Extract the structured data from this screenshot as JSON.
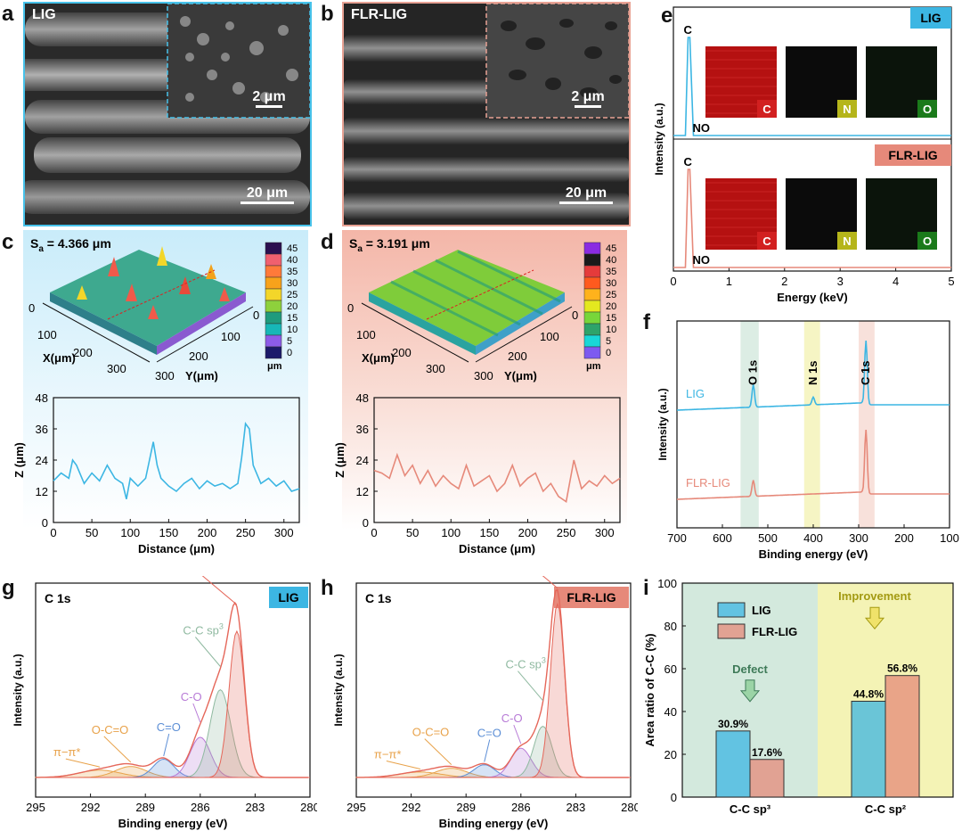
{
  "panels": {
    "a": "a",
    "b": "b",
    "c": "c",
    "d": "d",
    "e": "e",
    "f": "f",
    "g": "g",
    "h": "h",
    "i": "i"
  },
  "sem": {
    "lig_label": "LIG",
    "flr_label": "FLR-LIG",
    "scale_large": "20 μm",
    "scale_small": "2 μm"
  },
  "colors": {
    "lig": "#3cb6e3",
    "flr": "#e6897a",
    "lig_bg": "#bfe6f6",
    "flr_bg": "#f6c9be",
    "green_band": "#d3e9dd",
    "yellow_band": "#f4f3b5"
  },
  "surface": {
    "c": {
      "sa": "S",
      "sa_sub": "a",
      "sa_value": " = 4.366 μm",
      "x_axis": "X(μm)",
      "y_axis": "Y(μm)",
      "x_ticks": [
        "0",
        "100",
        "200",
        "300"
      ],
      "y_ticks": [
        "0",
        "100",
        "200",
        "300"
      ],
      "colorbar_ticks": [
        "45",
        "40",
        "35",
        "30",
        "25",
        "20",
        "15",
        "10",
        "5",
        "0"
      ],
      "colorbar_unit": "μm",
      "colorbar_colors": [
        "#2b1050",
        "#f0606f",
        "#ff7a3a",
        "#f7a21b",
        "#f3d629",
        "#8ed13c",
        "#1f9b7d",
        "#17b7b7",
        "#8d5ce8",
        "#1c1a6a"
      ]
    },
    "d": {
      "sa": "S",
      "sa_sub": "a",
      "sa_value": " = 3.191 μm",
      "x_axis": "X(μm)",
      "y_axis": "Y(μm)",
      "x_ticks": [
        "0",
        "100",
        "200",
        "300"
      ],
      "y_ticks": [
        "0",
        "100",
        "200",
        "300"
      ],
      "colorbar_ticks": [
        "45",
        "40",
        "35",
        "30",
        "25",
        "20",
        "15",
        "10",
        "5",
        "0"
      ],
      "colorbar_unit": "μm",
      "colorbar_colors": [
        "#8a2be2",
        "#1a1a1a",
        "#e53b3b",
        "#ff5a1e",
        "#ffb21c",
        "#e4e81f",
        "#78d63a",
        "#2ea36a",
        "#19d7d7",
        "#7d5af0"
      ]
    }
  },
  "chart_data": [
    {
      "id": "c-profile",
      "type": "line",
      "xlabel": "Distance (μm)",
      "ylabel": "Z (μm)",
      "xlim": [
        0,
        320
      ],
      "ylim": [
        0,
        48
      ],
      "xticks": [
        0,
        50,
        100,
        150,
        200,
        250,
        300
      ],
      "yticks": [
        0,
        12,
        24,
        36,
        48
      ],
      "x": [
        0,
        10,
        20,
        25,
        30,
        40,
        50,
        60,
        70,
        80,
        90,
        95,
        100,
        110,
        120,
        125,
        130,
        135,
        140,
        150,
        160,
        170,
        180,
        190,
        200,
        210,
        220,
        230,
        240,
        245,
        250,
        255,
        260,
        270,
        280,
        290,
        300,
        310,
        320
      ],
      "y": [
        16,
        19,
        17,
        24,
        22,
        15,
        19,
        16,
        22,
        17,
        15,
        9,
        17,
        14,
        17,
        24,
        31,
        22,
        17,
        14,
        12,
        15,
        17,
        13,
        16,
        14,
        15,
        13,
        15,
        25,
        38,
        36,
        22,
        15,
        17,
        14,
        16,
        12,
        13
      ]
    },
    {
      "id": "d-profile",
      "type": "line",
      "xlabel": "Distance (μm)",
      "ylabel": "Z (μm)",
      "xlim": [
        0,
        320
      ],
      "ylim": [
        0,
        48
      ],
      "xticks": [
        0,
        50,
        100,
        150,
        200,
        250,
        300
      ],
      "yticks": [
        0,
        12,
        24,
        36,
        48
      ],
      "x": [
        0,
        10,
        20,
        30,
        40,
        50,
        60,
        70,
        80,
        90,
        100,
        110,
        120,
        130,
        140,
        150,
        160,
        170,
        180,
        190,
        200,
        210,
        220,
        230,
        240,
        250,
        260,
        270,
        280,
        290,
        300,
        310,
        320
      ],
      "y": [
        20,
        19,
        17,
        26,
        18,
        22,
        15,
        20,
        14,
        18,
        15,
        13,
        22,
        14,
        16,
        18,
        12,
        15,
        22,
        14,
        17,
        19,
        12,
        15,
        10,
        8,
        24,
        13,
        16,
        14,
        18,
        15,
        17
      ]
    },
    {
      "id": "e-edx",
      "type": "line",
      "xlabel": "Energy (keV)",
      "ylabel": "Intensity (a.u.)",
      "xlim": [
        0,
        5
      ],
      "xticks": [
        0,
        1,
        2,
        3,
        4,
        5
      ],
      "series": [
        {
          "name": "LIG",
          "peak_x": 0.28,
          "peak_label": "C",
          "minor_label": "NO"
        },
        {
          "name": "FLR-LIG",
          "peak_x": 0.28,
          "peak_label": "C",
          "minor_label": "NO"
        }
      ],
      "maps": [
        "C",
        "N",
        "O"
      ],
      "map_colors": [
        "#b51111",
        "#0b0b0b",
        "#0b140b"
      ],
      "map_tag_colors": [
        "#d22020",
        "#b5b51a",
        "#1a7a1a"
      ]
    },
    {
      "id": "f-xps-survey",
      "type": "line",
      "xlabel": "Binding energy (eV)",
      "ylabel": "Intensity (a.u.)",
      "xlim": [
        700,
        100
      ],
      "xticks": [
        700,
        600,
        500,
        400,
        300,
        200,
        100
      ],
      "series": [
        {
          "name": "LIG",
          "peaks": [
            {
              "x": 532,
              "h": 0.35
            },
            {
              "x": 400,
              "h": 0.12
            },
            {
              "x": 284,
              "h": 1.0
            }
          ]
        },
        {
          "name": "FLR-LIG",
          "peaks": [
            {
              "x": 532,
              "h": 0.25
            },
            {
              "x": 284,
              "h": 1.0
            }
          ]
        }
      ],
      "annotations": [
        "O 1s",
        "N 1s",
        "C 1s"
      ]
    },
    {
      "id": "g-xps-c1s-lig",
      "type": "line",
      "title": "C 1s",
      "tag": "LIG",
      "xlabel": "Binding energy (eV)",
      "ylabel": "Intensity (a.u.)",
      "xlim": [
        295,
        280
      ],
      "xticks": [
        295,
        292,
        289,
        286,
        283,
        280
      ],
      "components": [
        {
          "name": "π−π*",
          "center": 291.5,
          "height": 0.04,
          "width": 1.6,
          "color": "#e8a24a"
        },
        {
          "name": "O-C=O",
          "center": 289.8,
          "height": 0.06,
          "width": 1.2,
          "color": "#e8a24a"
        },
        {
          "name": "C=O",
          "center": 288.0,
          "height": 0.1,
          "width": 0.8,
          "color": "#5d8fd6"
        },
        {
          "name": "C-O",
          "center": 286.0,
          "height": 0.22,
          "width": 0.8,
          "color": "#b77ad6"
        },
        {
          "name": "C-C sp",
          "sup": "3",
          "center": 284.9,
          "height": 0.48,
          "width": 0.8,
          "color": "#8fb9a0"
        },
        {
          "name": "C-C sp",
          "sup": "2",
          "center": 284.0,
          "height": 0.8,
          "width": 0.6,
          "color": "#e5675a"
        }
      ]
    },
    {
      "id": "h-xps-c1s-flr",
      "type": "line",
      "title": "C 1s",
      "tag": "FLR-LIG",
      "xlabel": "Binding energy (eV)",
      "ylabel": "Intensity (a.u.)",
      "xlim": [
        295,
        280
      ],
      "xticks": [
        295,
        292,
        289,
        286,
        283,
        280
      ],
      "components": [
        {
          "name": "π−π*",
          "center": 291.5,
          "height": 0.03,
          "width": 1.6,
          "color": "#e8a24a"
        },
        {
          "name": "O-C=O",
          "center": 289.8,
          "height": 0.05,
          "width": 1.2,
          "color": "#e8a24a"
        },
        {
          "name": "C=O",
          "center": 288.0,
          "height": 0.07,
          "width": 0.8,
          "color": "#5d8fd6"
        },
        {
          "name": "C-O",
          "center": 286.0,
          "height": 0.16,
          "width": 0.8,
          "color": "#b77ad6"
        },
        {
          "name": "C-C sp",
          "sup": "3",
          "center": 284.8,
          "height": 0.28,
          "width": 0.7,
          "color": "#8fb9a0"
        },
        {
          "name": "C-C sp",
          "sup": "2",
          "center": 284.0,
          "height": 0.95,
          "width": 0.55,
          "color": "#e5675a"
        }
      ]
    },
    {
      "id": "i-bar",
      "type": "bar",
      "ylabel": "Area ratio of C-C (%)",
      "ylim": [
        0,
        100
      ],
      "yticks": [
        0,
        20,
        40,
        60,
        80,
        100
      ],
      "categories": [
        "C-C sp³",
        "C-C sp²"
      ],
      "series": [
        {
          "name": "LIG",
          "values": [
            30.9,
            44.8
          ],
          "labels": [
            "30.9%",
            "44.8%"
          ]
        },
        {
          "name": "FLR-LIG",
          "values": [
            17.6,
            56.8
          ],
          "labels": [
            "17.6%",
            "56.8%"
          ]
        }
      ],
      "annotations": [
        "Defect",
        "Improvement"
      ]
    }
  ]
}
